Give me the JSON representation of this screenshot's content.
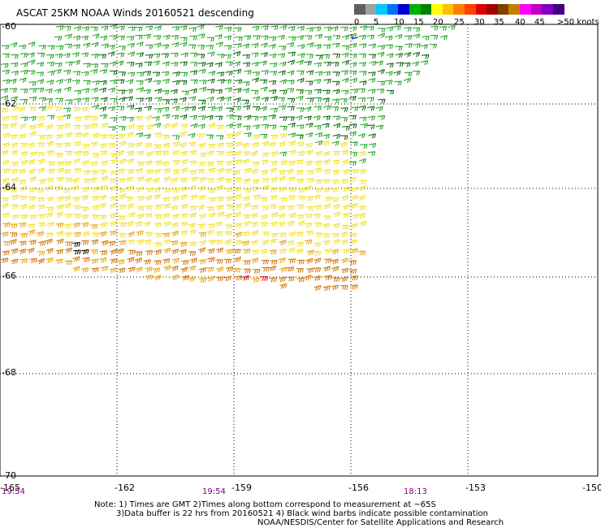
{
  "title": "ASCAT 25KM NOAA Winds 20160521 descending",
  "legend": {
    "labels": [
      "0",
      "5",
      "10",
      "15",
      "20",
      "25",
      "30",
      "35",
      "40",
      "45",
      ">50 knots"
    ],
    "colors": [
      "#606060",
      "#a0a0a0",
      "#00c8ff",
      "#0070ff",
      "#0000d0",
      "#00b000",
      "#008000",
      "#ffff00",
      "#ffc000",
      "#ff8000",
      "#ff4000",
      "#e00000",
      "#a00000",
      "#804000",
      "#c08000",
      "#ff00ff",
      "#c000c0",
      "#8000c0",
      "#400080"
    ]
  },
  "map": {
    "lat_labels": [
      "-60",
      "-62",
      "-64",
      "-66",
      "-68",
      "-70"
    ],
    "lon_labels": [
      "-165",
      "-162",
      "-159",
      "-156",
      "-153",
      "-150"
    ],
    "time_labels": [
      "19:54",
      "19:54",
      "18:13"
    ],
    "barb_colors": {
      "green_dark": "#006400",
      "green": "#1aa01a",
      "yellow": "#f0e020",
      "orange": "#e8a000",
      "dark_orange": "#d07000",
      "red": "#e00000",
      "contaminated": "#000000"
    }
  },
  "notes": {
    "line1": "Note: 1) Times are GMT 2)Times along bottom correspond to measurement at ~65S",
    "line2": "3)Data buffer is 22 hrs from 20160521 4) Black wind barbs indicate possible contamination",
    "line3": "NOAA/NESDIS/Center for Satellite Applications and Research"
  }
}
